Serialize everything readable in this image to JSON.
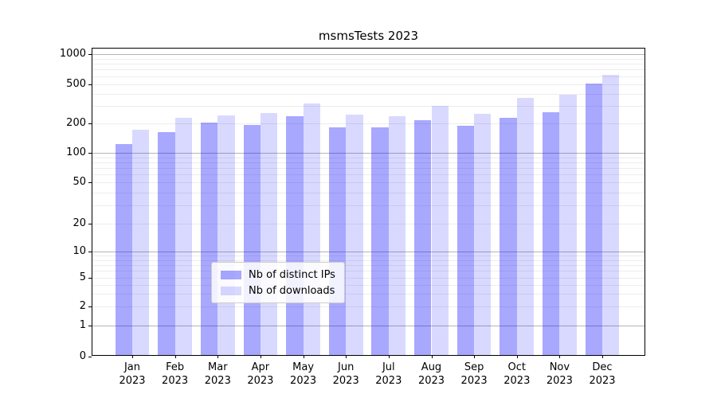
{
  "chart_data": {
    "type": "bar",
    "title": "msmsTests 2023",
    "categories": [
      "Jan",
      "Feb",
      "Mar",
      "Apr",
      "May",
      "Jun",
      "Jul",
      "Aug",
      "Sep",
      "Oct",
      "Nov",
      "Dec"
    ],
    "year_label": "2023",
    "series": [
      {
        "name": "Nb of distinct IPs",
        "color": "rgba(0,0,255,0.34)",
        "values": [
          118,
          157,
          198,
          186,
          228,
          176,
          175,
          208,
          184,
          218,
          250,
          488
        ]
      },
      {
        "name": "Nb of downloads",
        "color": "rgba(0,0,255,0.15)",
        "values": [
          165,
          220,
          232,
          244,
          305,
          238,
          226,
          292,
          240,
          352,
          376,
          595
        ]
      }
    ],
    "yticks": [
      0,
      1,
      2,
      5,
      10,
      20,
      50,
      100,
      200,
      500,
      1000
    ],
    "yscale": "symlog",
    "ylim": [
      0,
      1120
    ],
    "xlabel": "",
    "ylabel": "",
    "grid": true,
    "legend_position": "lower center",
    "colors": {
      "bar_dark": "#a8a8ff",
      "bar_light": "#d9d9ff",
      "grid_minor": "#ededed",
      "grid_major": "#b5b5b5",
      "axis": "#000000"
    }
  }
}
